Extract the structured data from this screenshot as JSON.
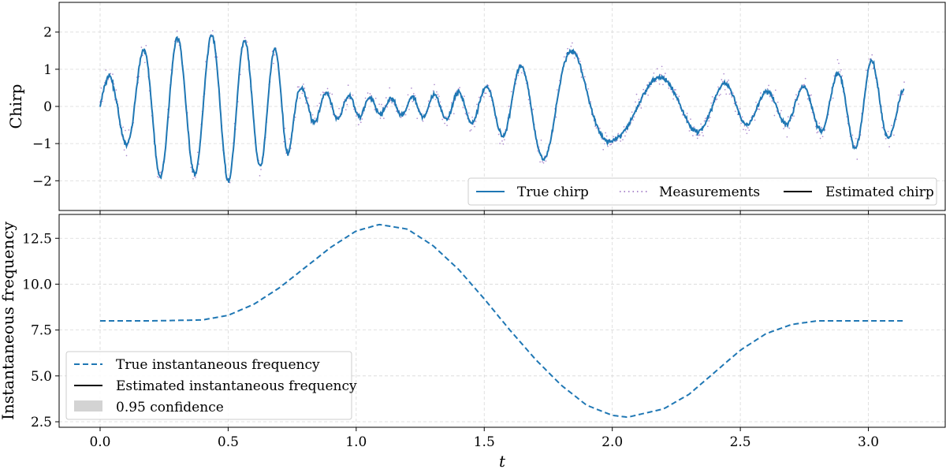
{
  "chart_data": [
    {
      "type": "line",
      "ylabel": "Chirp",
      "xlabel": "",
      "xlim": [
        -0.16,
        3.3
      ],
      "ylim": [
        -2.8,
        2.8
      ],
      "xticks": [
        "0.0",
        "0.5",
        "1.0",
        "1.5",
        "2.0",
        "2.5",
        "3.0"
      ],
      "xtick_values": [
        0,
        0.5,
        1,
        1.5,
        2,
        2.5,
        3
      ],
      "yticks": [
        "−2",
        "−1",
        "0",
        "1",
        "2"
      ],
      "ytick_values": [
        -2,
        -1,
        0,
        1,
        2
      ],
      "grid": true,
      "legend_position": "bottom-right",
      "t_end": 3.14,
      "amplitude_envelope": {
        "t": [
          0,
          0.1,
          0.22,
          0.35,
          0.5,
          0.62,
          0.72,
          0.78,
          0.95,
          1.1,
          1.3,
          1.5,
          1.62,
          1.78,
          1.9,
          2.0,
          2.15,
          2.3,
          2.45,
          2.6,
          2.8,
          3.0,
          3.14
        ],
        "a": [
          0.7,
          1.0,
          1.9,
          1.8,
          2.0,
          1.6,
          1.5,
          0.5,
          0.3,
          0.2,
          0.3,
          0.5,
          1.0,
          1.6,
          1.4,
          0.9,
          0.8,
          0.7,
          0.6,
          0.4,
          0.6,
          1.3,
          0.5
        ]
      },
      "series": [
        {
          "name": "True chirp",
          "color": "#1f77b4",
          "style": "solid"
        },
        {
          "name": "Measurements",
          "color": "#9467bd",
          "style": "dotted"
        },
        {
          "name": "Estimated chirp",
          "color": "#000000",
          "style": "solid"
        }
      ]
    },
    {
      "type": "line",
      "ylabel": "Instantaneous frequency",
      "xlabel": "t",
      "xlim": [
        -0.16,
        3.3
      ],
      "ylim": [
        2.2,
        13.8
      ],
      "xticks": [
        "0.0",
        "0.5",
        "1.0",
        "1.5",
        "2.0",
        "2.5",
        "3.0"
      ],
      "xtick_values": [
        0,
        0.5,
        1,
        1.5,
        2,
        2.5,
        3
      ],
      "yticks": [
        "2.5",
        "5.0",
        "7.5",
        "10.0",
        "12.5"
      ],
      "ytick_values": [
        2.5,
        5,
        7.5,
        10,
        12.5
      ],
      "grid": true,
      "legend_position": "bottom-left",
      "series": [
        {
          "name": "True instantaneous frequency",
          "color": "#1f77b4",
          "style": "dashed",
          "x": [
            0,
            0.2,
            0.4,
            0.5,
            0.6,
            0.7,
            0.8,
            0.9,
            1.0,
            1.09,
            1.2,
            1.3,
            1.4,
            1.5,
            1.6,
            1.7,
            1.8,
            1.9,
            2.0,
            2.06,
            2.2,
            2.3,
            2.4,
            2.5,
            2.6,
            2.7,
            2.8,
            3.0,
            3.14
          ],
          "y": [
            8.0,
            8.0,
            8.05,
            8.3,
            8.9,
            9.8,
            10.9,
            12.0,
            12.9,
            13.25,
            13.0,
            12.1,
            10.8,
            9.2,
            7.5,
            5.9,
            4.5,
            3.4,
            2.85,
            2.75,
            3.2,
            4.0,
            5.2,
            6.4,
            7.3,
            7.8,
            8.0,
            8.0,
            8.0
          ]
        },
        {
          "name": "Estimated instantaneous frequency",
          "color": "#000000",
          "style": "solid"
        },
        {
          "name": "0.95 confidence",
          "color": "#d3d3d3",
          "style": "fill"
        }
      ]
    }
  ]
}
